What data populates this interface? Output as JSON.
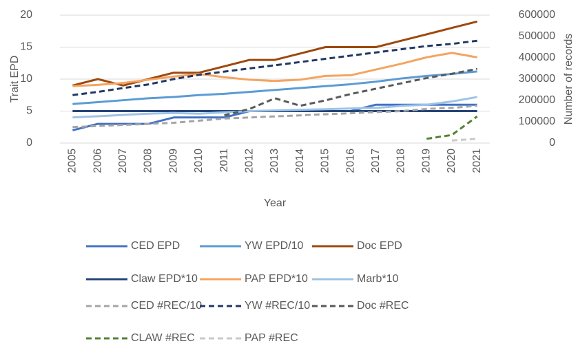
{
  "chart_data": {
    "type": "line",
    "categories": [
      "2005",
      "2006",
      "2007",
      "2008",
      "2009",
      "2010",
      "2011",
      "2012",
      "2013",
      "2014",
      "2015",
      "2016",
      "2017",
      "2018",
      "2019",
      "2020",
      "2021"
    ],
    "x_label": "Year",
    "y_label": "Trait EPD",
    "y2_label": "Number of records",
    "ylim": [
      0,
      20
    ],
    "yticks": [
      0,
      5,
      10,
      15,
      20
    ],
    "y2lim": [
      0,
      600000
    ],
    "y2ticks": [
      0,
      100000,
      200000,
      300000,
      400000,
      500000,
      600000
    ],
    "grid": true,
    "series": [
      {
        "name": "CED EPD",
        "color": "#4472c4",
        "dash": false,
        "values": [
          2,
          3,
          3,
          3,
          4,
          4,
          4,
          5,
          5,
          5,
          5,
          5,
          6,
          6,
          6,
          6,
          6
        ]
      },
      {
        "name": "YW EPD/10",
        "color": "#5b9bd5",
        "dash": false,
        "values": [
          6.1,
          6.4,
          6.7,
          7.0,
          7.2,
          7.5,
          7.7,
          8.0,
          8.3,
          8.6,
          8.9,
          9.2,
          9.6,
          10.1,
          10.5,
          10.8,
          11.2
        ]
      },
      {
        "name": "Doc EPD",
        "color": "#9e480e",
        "dash": false,
        "values": [
          9,
          10,
          9,
          10,
          11,
          11,
          12,
          13,
          13,
          14,
          15,
          15,
          15,
          16,
          17,
          18,
          19
        ]
      },
      {
        "name": "Claw EPD*10",
        "color": "#264478",
        "dash": false,
        "values": [
          5,
          5,
          5,
          5,
          5,
          5,
          5,
          5,
          5,
          5,
          5,
          5,
          5,
          5,
          5,
          5,
          5
        ]
      },
      {
        "name": "PAP EPD*10",
        "color": "#f4a460",
        "dash": false,
        "values": [
          8.9,
          9.1,
          9.4,
          9.9,
          10.4,
          10.8,
          10.3,
          9.9,
          9.7,
          9.9,
          10.5,
          10.6,
          11.5,
          12.4,
          13.4,
          14.1,
          13.4
        ]
      },
      {
        "name": "Marb*10",
        "color": "#9dc3e6",
        "dash": false,
        "values": [
          4.0,
          4.2,
          4.4,
          4.6,
          4.7,
          4.6,
          4.8,
          5.0,
          5.1,
          5.2,
          5.3,
          5.4,
          5.5,
          5.8,
          6.0,
          6.5,
          7.2
        ]
      },
      {
        "name": "CED #REC/10",
        "color": "#a5a5a5",
        "dash": true,
        "axis": "y2",
        "values": [
          75000,
          80000,
          85000,
          90000,
          95000,
          105000,
          115000,
          120000,
          125000,
          130000,
          135000,
          140000,
          145000,
          150000,
          160000,
          165000,
          175000
        ]
      },
      {
        "name": "YW #REC/10",
        "color": "#203864",
        "dash": true,
        "axis": "y2",
        "values": [
          225000,
          240000,
          258000,
          275000,
          300000,
          320000,
          335000,
          350000,
          365000,
          380000,
          395000,
          410000,
          425000,
          440000,
          455000,
          465000,
          480000
        ]
      },
      {
        "name": "Doc #REC",
        "color": "#595959",
        "dash": true,
        "axis": "y2",
        "values": [
          null,
          null,
          null,
          null,
          null,
          null,
          130000,
          160000,
          210000,
          175000,
          200000,
          230000,
          255000,
          280000,
          305000,
          325000,
          348000
        ]
      },
      {
        "name": "CLAW #REC",
        "color": "#548235",
        "dash": true,
        "axis": "y2",
        "values": [
          null,
          null,
          null,
          null,
          null,
          null,
          null,
          null,
          null,
          null,
          null,
          null,
          null,
          null,
          20000,
          38000,
          125000
        ]
      },
      {
        "name": "PAP #REC",
        "color": "#c9c9c9",
        "dash": true,
        "axis": "y2",
        "values": [
          null,
          null,
          null,
          null,
          null,
          null,
          null,
          null,
          null,
          null,
          null,
          null,
          null,
          null,
          null,
          12000,
          20000
        ]
      }
    ]
  }
}
